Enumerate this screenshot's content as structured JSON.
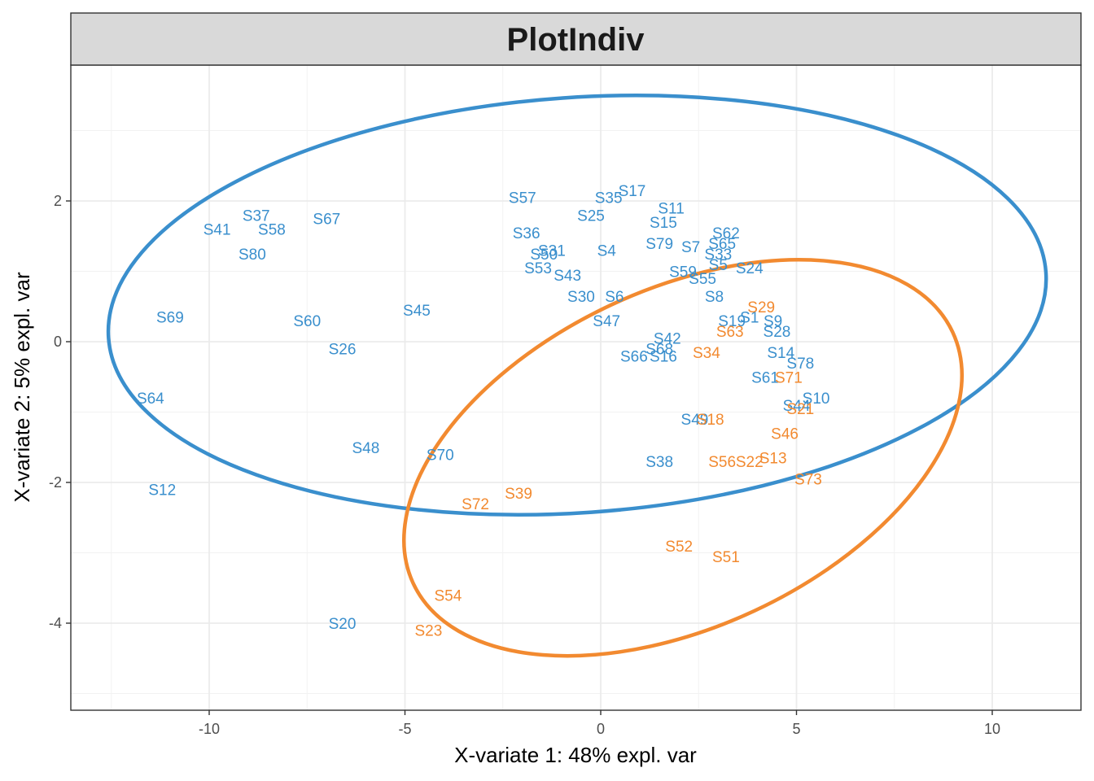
{
  "chart_data": {
    "type": "scatter",
    "title": "PlotIndiv",
    "xlabel": "X-variate 1: 48% expl. var",
    "ylabel": "X-variate 2: 5% expl. var",
    "xlim": [
      -13.5,
      12.3
    ],
    "ylim": [
      -5.3,
      3.9
    ],
    "xticks": [
      -10,
      -5,
      0,
      5,
      10
    ],
    "yticks": [
      -4,
      -2,
      0,
      2
    ],
    "grid": true,
    "colors": {
      "group1": "#3a8fcd",
      "group2": "#f28a30"
    },
    "points": [
      {
        "label": "S17",
        "x": 0.8,
        "y": 2.15,
        "group": "group1"
      },
      {
        "label": "S57",
        "x": -2.0,
        "y": 2.05,
        "group": "group1"
      },
      {
        "label": "S35",
        "x": 0.2,
        "y": 2.05,
        "group": "group1"
      },
      {
        "label": "S11",
        "x": 1.8,
        "y": 1.9,
        "group": "group1"
      },
      {
        "label": "S25",
        "x": -0.25,
        "y": 1.8,
        "group": "group1"
      },
      {
        "label": "S37",
        "x": -8.8,
        "y": 1.8,
        "group": "group1"
      },
      {
        "label": "S67",
        "x": -7.0,
        "y": 1.75,
        "group": "group1"
      },
      {
        "label": "S15",
        "x": 1.6,
        "y": 1.7,
        "group": "group1"
      },
      {
        "label": "S41",
        "x": -9.8,
        "y": 1.6,
        "group": "group1"
      },
      {
        "label": "S58",
        "x": -8.4,
        "y": 1.6,
        "group": "group1"
      },
      {
        "label": "S36",
        "x": -1.9,
        "y": 1.55,
        "group": "group1"
      },
      {
        "label": "S62",
        "x": 3.2,
        "y": 1.55,
        "group": "group1"
      },
      {
        "label": "S79",
        "x": 1.5,
        "y": 1.4,
        "group": "group1"
      },
      {
        "label": "S65",
        "x": 3.1,
        "y": 1.4,
        "group": "group1"
      },
      {
        "label": "S7",
        "x": 2.3,
        "y": 1.35,
        "group": "group1"
      },
      {
        "label": "S31",
        "x": -1.25,
        "y": 1.3,
        "group": "group1"
      },
      {
        "label": "S4",
        "x": 0.15,
        "y": 1.3,
        "group": "group1"
      },
      {
        "label": "S50",
        "x": -1.45,
        "y": 1.25,
        "group": "group1"
      },
      {
        "label": "S80",
        "x": -8.9,
        "y": 1.25,
        "group": "group1"
      },
      {
        "label": "S33",
        "x": 3.0,
        "y": 1.25,
        "group": "group1"
      },
      {
        "label": "S5",
        "x": 3.0,
        "y": 1.1,
        "group": "group1"
      },
      {
        "label": "S53",
        "x": -1.6,
        "y": 1.05,
        "group": "group1"
      },
      {
        "label": "S24",
        "x": 3.8,
        "y": 1.05,
        "group": "group1"
      },
      {
        "label": "S43",
        "x": -0.85,
        "y": 0.95,
        "group": "group1"
      },
      {
        "label": "S59",
        "x": 2.1,
        "y": 1.0,
        "group": "group1"
      },
      {
        "label": "S55",
        "x": 2.6,
        "y": 0.9,
        "group": "group1"
      },
      {
        "label": "S30",
        "x": -0.5,
        "y": 0.65,
        "group": "group1"
      },
      {
        "label": "S6",
        "x": 0.35,
        "y": 0.65,
        "group": "group1"
      },
      {
        "label": "S8",
        "x": 2.9,
        "y": 0.65,
        "group": "group1"
      },
      {
        "label": "S69",
        "x": -11.0,
        "y": 0.35,
        "group": "group1"
      },
      {
        "label": "S60",
        "x": -7.5,
        "y": 0.3,
        "group": "group1"
      },
      {
        "label": "S45",
        "x": -4.7,
        "y": 0.45,
        "group": "group1"
      },
      {
        "label": "S47",
        "x": 0.15,
        "y": 0.3,
        "group": "group1"
      },
      {
        "label": "S1",
        "x": 3.8,
        "y": 0.35,
        "group": "group1"
      },
      {
        "label": "S19",
        "x": 3.35,
        "y": 0.3,
        "group": "group1"
      },
      {
        "label": "S9",
        "x": 4.4,
        "y": 0.3,
        "group": "group1"
      },
      {
        "label": "S28",
        "x": 4.5,
        "y": 0.15,
        "group": "group1"
      },
      {
        "label": "S42",
        "x": 1.7,
        "y": 0.05,
        "group": "group1"
      },
      {
        "label": "S26",
        "x": -6.6,
        "y": -0.1,
        "group": "group1"
      },
      {
        "label": "S68",
        "x": 1.5,
        "y": -0.1,
        "group": "group1"
      },
      {
        "label": "S14",
        "x": 4.6,
        "y": -0.15,
        "group": "group1"
      },
      {
        "label": "S66",
        "x": 0.85,
        "y": -0.2,
        "group": "group1"
      },
      {
        "label": "S16",
        "x": 1.6,
        "y": -0.2,
        "group": "group1"
      },
      {
        "label": "S78",
        "x": 5.1,
        "y": -0.3,
        "group": "group1"
      },
      {
        "label": "S61",
        "x": 4.2,
        "y": -0.5,
        "group": "group1"
      },
      {
        "label": "S64",
        "x": -11.5,
        "y": -0.8,
        "group": "group1"
      },
      {
        "label": "S10",
        "x": 5.5,
        "y": -0.8,
        "group": "group1"
      },
      {
        "label": "S44",
        "x": 5.0,
        "y": -0.9,
        "group": "group1"
      },
      {
        "label": "S49",
        "x": 2.4,
        "y": -1.1,
        "group": "group1"
      },
      {
        "label": "S48",
        "x": -6.0,
        "y": -1.5,
        "group": "group1"
      },
      {
        "label": "S70",
        "x": -4.1,
        "y": -1.6,
        "group": "group1"
      },
      {
        "label": "S38",
        "x": 1.5,
        "y": -1.7,
        "group": "group1"
      },
      {
        "label": "S12",
        "x": -11.2,
        "y": -2.1,
        "group": "group1"
      },
      {
        "label": "S20",
        "x": -6.6,
        "y": -4.0,
        "group": "group1"
      },
      {
        "label": "S29",
        "x": 4.1,
        "y": 0.5,
        "group": "group2"
      },
      {
        "label": "S63",
        "x": 3.3,
        "y": 0.15,
        "group": "group2"
      },
      {
        "label": "S34",
        "x": 2.7,
        "y": -0.15,
        "group": "group2"
      },
      {
        "label": "S71",
        "x": 4.8,
        "y": -0.5,
        "group": "group2"
      },
      {
        "label": "S21",
        "x": 5.1,
        "y": -0.95,
        "group": "group2"
      },
      {
        "label": "S18",
        "x": 2.8,
        "y": -1.1,
        "group": "group2"
      },
      {
        "label": "S46",
        "x": 4.7,
        "y": -1.3,
        "group": "group2"
      },
      {
        "label": "S13",
        "x": 4.4,
        "y": -1.65,
        "group": "group2"
      },
      {
        "label": "S56",
        "x": 3.1,
        "y": -1.7,
        "group": "group2"
      },
      {
        "label": "S22",
        "x": 3.8,
        "y": -1.7,
        "group": "group2"
      },
      {
        "label": "S73",
        "x": 5.3,
        "y": -1.95,
        "group": "group2"
      },
      {
        "label": "S39",
        "x": -2.1,
        "y": -2.15,
        "group": "group2"
      },
      {
        "label": "S72",
        "x": -3.2,
        "y": -2.3,
        "group": "group2"
      },
      {
        "label": "S52",
        "x": 2.0,
        "y": -2.9,
        "group": "group2"
      },
      {
        "label": "S51",
        "x": 3.2,
        "y": -3.05,
        "group": "group2"
      },
      {
        "label": "S54",
        "x": -3.9,
        "y": -3.6,
        "group": "group2"
      },
      {
        "label": "S23",
        "x": -4.4,
        "y": -4.1,
        "group": "group2"
      }
    ],
    "ellipses": [
      {
        "group": "group1",
        "cx": -0.6,
        "cy": 0.52,
        "rx": 12.0,
        "ry": 2.95,
        "angle_deg": -4
      },
      {
        "group": "group2",
        "cx": 2.1,
        "cy": -1.65,
        "rx": 7.6,
        "ry": 2.4,
        "angle_deg": -25
      }
    ]
  }
}
